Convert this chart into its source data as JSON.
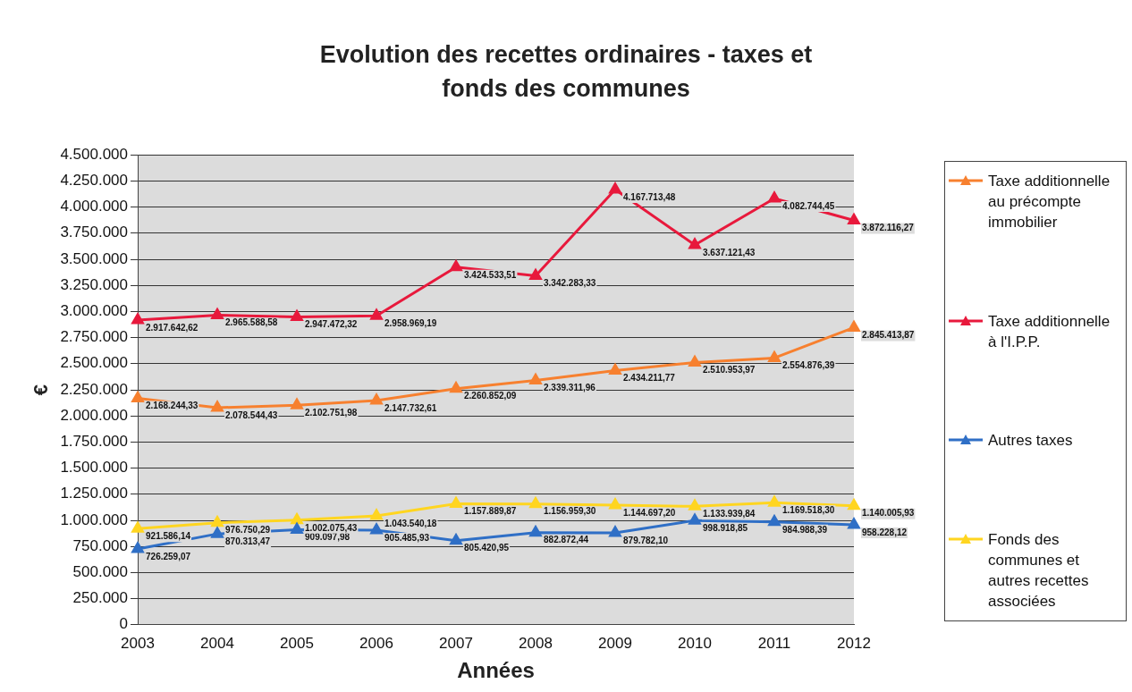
{
  "chart_data": {
    "type": "line",
    "title": "Evolution des recettes ordinaires - taxes et fonds des communes",
    "xlabel": "Années",
    "ylabel": "€",
    "categories": [
      "2003",
      "2004",
      "2005",
      "2006",
      "2007",
      "2008",
      "2009",
      "2010",
      "2011",
      "2012"
    ],
    "series": [
      {
        "name": "Taxe additionnelle au précompte immobilier",
        "color": "#f7802f",
        "values": [
          2168244.33,
          2078544.43,
          2102751.98,
          2147732.61,
          2260852.09,
          2339311.96,
          2434211.77,
          2510953.97,
          2554876.39,
          2845413.87
        ],
        "value_labels": [
          "2.168.244,33",
          "2.078.544,43",
          "2.102.751,98",
          "2.147.732,61",
          "2.260.852,09",
          "2.339.311,96",
          "2.434.211,77",
          "2.510.953,97",
          "2.554.876,39",
          "2.845.413,87"
        ]
      },
      {
        "name": "Taxe additionnelle à l'I.P.P.",
        "color": "#e8193c",
        "values": [
          2917642.62,
          2965588.58,
          2947472.32,
          2958969.19,
          3424533.51,
          3342283.33,
          4167713.48,
          3637121.43,
          4082744.45,
          3872116.27
        ],
        "value_labels": [
          "2.917.642,62",
          "2.965.588,58",
          "2.947.472,32",
          "2.958.969,19",
          "3.424.533,51",
          "3.342.283,33",
          "4.167.713,48",
          "3.637.121,43",
          "4.082.744,45",
          "3.872.116,27"
        ]
      },
      {
        "name": "Autres taxes",
        "color": "#2f6fc6",
        "values": [
          726259.07,
          870313.47,
          909097.98,
          905485.93,
          805420.95,
          882872.44,
          879782.1,
          998918.85,
          984988.39,
          958228.12
        ],
        "value_labels": [
          "726.259,07",
          "870.313,47",
          "909.097,98",
          "905.485,93",
          "805.420,95",
          "882.872,44",
          "879.782,10",
          "998.918,85",
          "984.988,39",
          "958.228,12"
        ]
      },
      {
        "name": "Fonds des communes et autres recettes associées",
        "color": "#ffd520",
        "values": [
          921586.14,
          976750.29,
          1002075.43,
          1043540.18,
          1157889.87,
          1156959.3,
          1144697.2,
          1133939.84,
          1169518.3,
          1140005.93
        ],
        "value_labels": [
          "921.586,14",
          "976.750,29",
          "1.002.075,43",
          "1.043.540,18",
          "1.157.889,87",
          "1.156.959,30",
          "1.144.697,20",
          "1.133.939,84",
          "1.169.518,30",
          "1.140.005,93"
        ]
      }
    ],
    "ylim": [
      0,
      4500000
    ],
    "yticks": [
      {
        "value": 0,
        "label": "0"
      },
      {
        "value": 250000,
        "label": "250.000"
      },
      {
        "value": 500000,
        "label": "500.000"
      },
      {
        "value": 750000,
        "label": "750.000"
      },
      {
        "value": 1000000,
        "label": "1.000.000"
      },
      {
        "value": 1250000,
        "label": "1.250.000"
      },
      {
        "value": 1500000,
        "label": "1.500.000"
      },
      {
        "value": 1750000,
        "label": "1.750.000"
      },
      {
        "value": 2000000,
        "label": "2.000.000"
      },
      {
        "value": 2250000,
        "label": "2.250.000"
      },
      {
        "value": 2500000,
        "label": "2.500.000"
      },
      {
        "value": 2750000,
        "label": "2.750.000"
      },
      {
        "value": 3000000,
        "label": "3.000.000"
      },
      {
        "value": 3250000,
        "label": "3.250.000"
      },
      {
        "value": 3500000,
        "label": "3.500.000"
      },
      {
        "value": 3750000,
        "label": "3.750.000"
      },
      {
        "value": 4000000,
        "label": "4.000.000"
      },
      {
        "value": 4250000,
        "label": "4.250.000"
      },
      {
        "value": 4500000,
        "label": "4.500.000"
      }
    ],
    "grid": "y",
    "legend": "right",
    "marker": "triangle",
    "line_style": "solid"
  }
}
